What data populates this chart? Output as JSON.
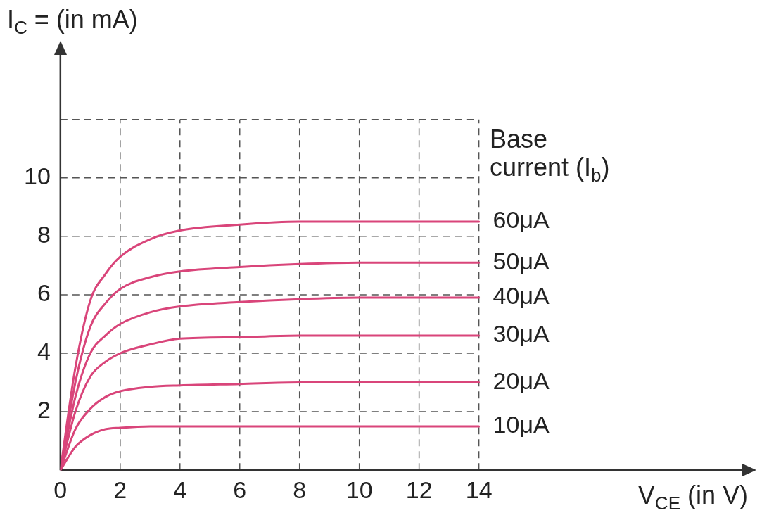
{
  "chart_data": {
    "type": "line",
    "ylabel": "I$_{C}$ = (in mA)",
    "xlabel": "V$_{CE}$ (in V)",
    "legend_title": "Base current (I$_{b}$)",
    "xlim": [
      0,
      23
    ],
    "ylim": [
      0,
      14.4
    ],
    "xticks": [
      0,
      2,
      4,
      6,
      8,
      10,
      12,
      14
    ],
    "yticks": [
      2,
      4,
      6,
      8,
      10,
      {
        "value": 12,
        "label": null
      }
    ],
    "grid": true,
    "legend": false,
    "marker": "none",
    "line_style": "solid",
    "series": [
      {
        "name": "60μA",
        "color": "#d9457a",
        "x": [
          0,
          0.5,
          1,
          1.5,
          2,
          3,
          4,
          6,
          8,
          10,
          12,
          14
        ],
        "values": [
          0,
          3.5,
          5.8,
          6.7,
          7.3,
          7.9,
          8.2,
          8.4,
          8.5,
          8.5,
          8.5,
          8.5
        ]
      },
      {
        "name": "50μA",
        "color": "#d9457a",
        "x": [
          0,
          0.5,
          1,
          1.5,
          2,
          3,
          4,
          6,
          8,
          10,
          12,
          14
        ],
        "values": [
          0,
          3.0,
          4.9,
          5.7,
          6.2,
          6.6,
          6.8,
          6.95,
          7.05,
          7.1,
          7.1,
          7.1
        ]
      },
      {
        "name": "40μA",
        "color": "#d9457a",
        "x": [
          0,
          0.5,
          1,
          1.5,
          2,
          3,
          4,
          6,
          8,
          10,
          12,
          14
        ],
        "values": [
          0,
          2.5,
          4.0,
          4.6,
          5.0,
          5.4,
          5.6,
          5.75,
          5.85,
          5.9,
          5.9,
          5.9
        ]
      },
      {
        "name": "30μA",
        "color": "#d9457a",
        "x": [
          0,
          0.5,
          1,
          1.5,
          2,
          3,
          4,
          6,
          8,
          10,
          12,
          14
        ],
        "values": [
          0,
          2.0,
          3.2,
          3.7,
          4.0,
          4.3,
          4.5,
          4.55,
          4.6,
          4.6,
          4.6,
          4.6
        ]
      },
      {
        "name": "20μA",
        "color": "#d9457a",
        "x": [
          0,
          0.5,
          1,
          1.5,
          2,
          3,
          4,
          6,
          8,
          10,
          12,
          14
        ],
        "values": [
          0,
          1.4,
          2.1,
          2.5,
          2.7,
          2.85,
          2.9,
          2.95,
          3.0,
          3.0,
          3.0,
          3.0
        ]
      },
      {
        "name": "10μA",
        "color": "#d9457a",
        "x": [
          0,
          0.5,
          1,
          1.5,
          2,
          3,
          4,
          6,
          8,
          10,
          12,
          14
        ],
        "values": [
          0,
          0.8,
          1.2,
          1.4,
          1.45,
          1.5,
          1.5,
          1.5,
          1.5,
          1.5,
          1.5,
          1.5
        ]
      }
    ]
  }
}
